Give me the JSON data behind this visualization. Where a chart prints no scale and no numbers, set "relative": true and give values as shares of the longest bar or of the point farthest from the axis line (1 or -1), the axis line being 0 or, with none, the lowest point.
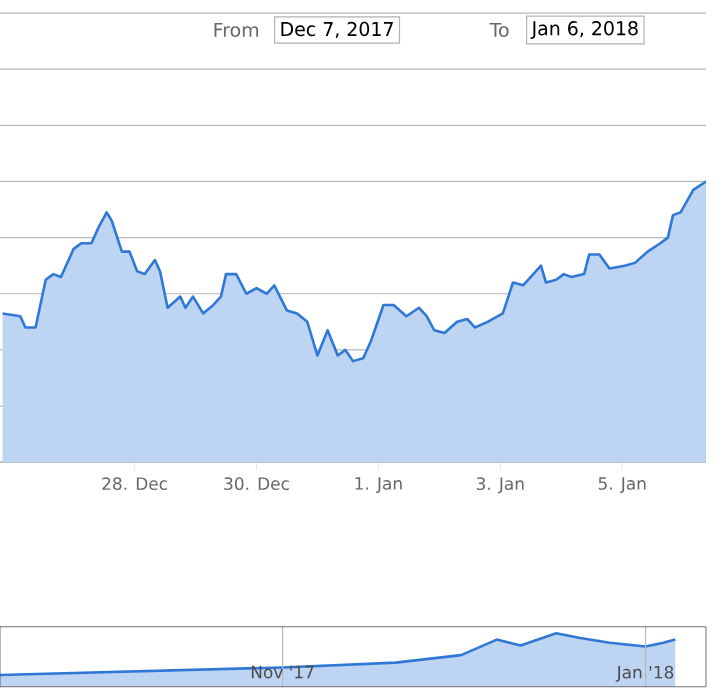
{
  "chart_data": [
    {
      "type": "area",
      "relative": true,
      "color": "#3078d6",
      "grid": "y",
      "annotations": [
        "From",
        "Dec 7, 2017",
        "To",
        "Jan 6, 2018"
      ],
      "xlim": [
        "2017-12-25T19:00",
        "2018-01-06T09:00"
      ],
      "xticks": [
        {
          "value": "2017-12-28",
          "label": "28. Dec"
        },
        {
          "value": "2017-12-30",
          "label": "30. Dec"
        },
        {
          "value": "2018-01-01",
          "label": "1. Jan"
        },
        {
          "value": "2018-01-03",
          "label": "3. Jan"
        },
        {
          "value": "2018-01-05",
          "label": "5. Jan"
        }
      ],
      "x": [
        "2017-12-25T20:00",
        "2017-12-26T03:00",
        "2017-12-26T05:00",
        "2017-12-26T09:00",
        "2017-12-26T13:00",
        "2017-12-26T16:00",
        "2017-12-26T19:00",
        "2017-12-27T00:00",
        "2017-12-27T03:00",
        "2017-12-27T07:00",
        "2017-12-27T10:00",
        "2017-12-27T13:00",
        "2017-12-27T15:00",
        "2017-12-27T19:00",
        "2017-12-27T22:00",
        "2017-12-28T01:00",
        "2017-12-28T04:00",
        "2017-12-28T08:00",
        "2017-12-28T10:00",
        "2017-12-28T13:00",
        "2017-12-28T18:00",
        "2017-12-28T20:00",
        "2017-12-28T23:00",
        "2017-12-29T03:00",
        "2017-12-29T07:00",
        "2017-12-29T10:00",
        "2017-12-29T12:00",
        "2017-12-29T16:00",
        "2017-12-29T20:00",
        "2017-12-30T00:00",
        "2017-12-30T04:00",
        "2017-12-30T07:00",
        "2017-12-30T12:00",
        "2017-12-30T16:00",
        "2017-12-30T20:00",
        "2017-12-31T00:00",
        "2017-12-31T04:00",
        "2017-12-31T08:00",
        "2017-12-31T11:00",
        "2017-12-31T14:00",
        "2017-12-31T18:00",
        "2017-12-31T21:00",
        "2018-01-01T02:00",
        "2018-01-01T06:00",
        "2018-01-01T11:00",
        "2018-01-01T16:00",
        "2018-01-01T19:00",
        "2018-01-01T22:00",
        "2018-01-02T02:00",
        "2018-01-02T07:00",
        "2018-01-02T11:00",
        "2018-01-02T14:00",
        "2018-01-02T19:00",
        "2018-01-03T01:00",
        "2018-01-03T05:00",
        "2018-01-03T09:00",
        "2018-01-03T13:00",
        "2018-01-03T16:00",
        "2018-01-03T18:00",
        "2018-01-03T22:00",
        "2018-01-04T01:00",
        "2018-01-04T04:00",
        "2018-01-04T09:00",
        "2018-01-04T11:00",
        "2018-01-04T15:00",
        "2018-01-04T19:00",
        "2018-01-05T01:00",
        "2018-01-05T05:00",
        "2018-01-05T10:00",
        "2018-01-05T15:00",
        "2018-01-05T18:00",
        "2018-01-05T20:00",
        "2018-01-05T23:00",
        "2018-01-06T04:00",
        "2018-01-06T09:00"
      ],
      "values": [
        0.53,
        0.52,
        0.48,
        0.48,
        0.65,
        0.67,
        0.66,
        0.76,
        0.78,
        0.78,
        0.84,
        0.89,
        0.86,
        0.75,
        0.75,
        0.68,
        0.67,
        0.72,
        0.68,
        0.55,
        0.59,
        0.55,
        0.59,
        0.53,
        0.56,
        0.59,
        0.67,
        0.67,
        0.6,
        0.62,
        0.6,
        0.63,
        0.54,
        0.53,
        0.5,
        0.38,
        0.47,
        0.38,
        0.4,
        0.36,
        0.37,
        0.43,
        0.56,
        0.56,
        0.52,
        0.55,
        0.52,
        0.47,
        0.46,
        0.5,
        0.51,
        0.48,
        0.5,
        0.53,
        0.64,
        0.63,
        0.67,
        0.7,
        0.64,
        0.65,
        0.67,
        0.66,
        0.67,
        0.74,
        0.74,
        0.69,
        0.7,
        0.71,
        0.75,
        0.78,
        0.8,
        0.88,
        0.89,
        0.97,
        1.0
      ]
    },
    {
      "type": "area",
      "relative": true,
      "color": "#3078d6",
      "grid": "x",
      "xlim": [
        "2017-09-14T12:00",
        "2018-01-11T04:00"
      ],
      "xticks": [
        {
          "value": "2017-11-01",
          "label": "Nov '17"
        },
        {
          "value": "2018-01-01",
          "label": "Jan '18"
        }
      ],
      "x": [
        "2017-09-14T12:00",
        "2017-11-01",
        "2017-11-20",
        "2017-12-01",
        "2017-12-07",
        "2017-12-11",
        "2017-12-17",
        "2017-12-21",
        "2017-12-26",
        "2018-01-01",
        "2018-01-04",
        "2018-01-06"
      ],
      "values": [
        0.22,
        0.36,
        0.45,
        0.59,
        0.88,
        0.77,
        1.0,
        0.91,
        0.82,
        0.75,
        0.82,
        0.88
      ]
    }
  ]
}
